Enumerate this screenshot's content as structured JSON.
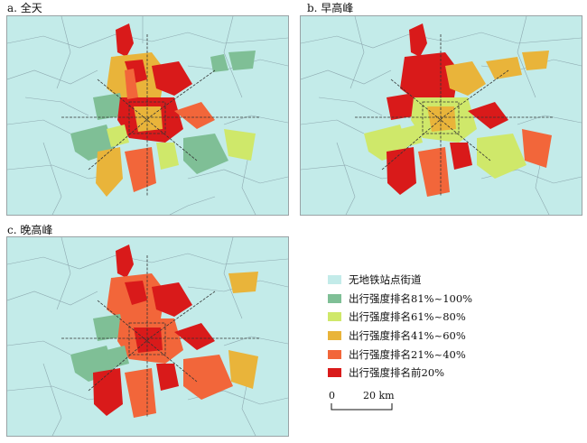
{
  "panels": [
    {
      "label": "a. 全天"
    },
    {
      "label": "b. 早高峰"
    },
    {
      "label": "c. 晚高峰"
    }
  ],
  "legend": [
    {
      "label": "无地铁站点街道",
      "color": "#c3ebe9"
    },
    {
      "label": "出行强度排名81%~100%",
      "color": "#7fbf96"
    },
    {
      "label": "出行强度排名61%~80%",
      "color": "#cfe86a"
    },
    {
      "label": "出行强度排名41%~60%",
      "color": "#e9b43a"
    },
    {
      "label": "出行强度排名21%~40%",
      "color": "#f2663a"
    },
    {
      "label": "出行强度排名前20%",
      "color": "#d91a1a"
    }
  ],
  "scale": {
    "zero": "0",
    "distance": "20 km"
  },
  "colors": {
    "background": "#c3ebe9",
    "boundary": "#8ea9b0",
    "subway": "#333333"
  }
}
